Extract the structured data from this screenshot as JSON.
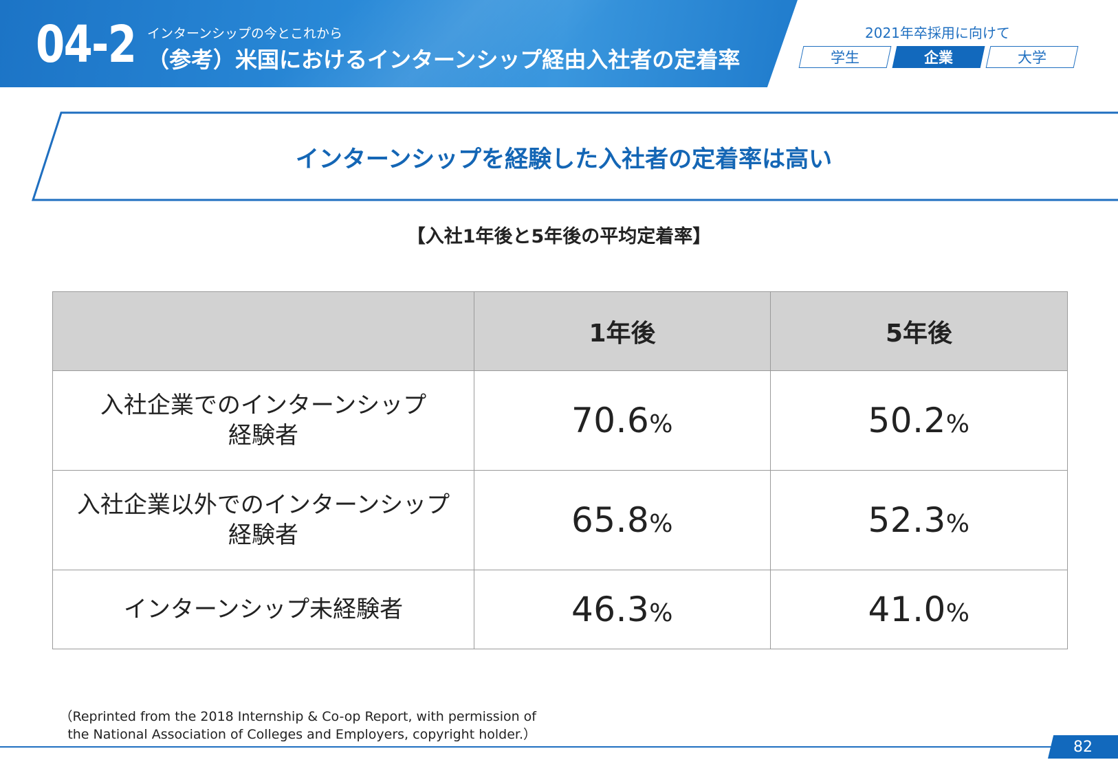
{
  "header": {
    "section_number": "04-2",
    "subtitle": "インターンシップの今とこれから",
    "title": "（参考）米国におけるインターンシップ経由入社者の定着率",
    "recruit_label": "2021年卒採用に向けて",
    "tabs": [
      {
        "label": "学生",
        "active": false
      },
      {
        "label": "企業",
        "active": true
      },
      {
        "label": "大学",
        "active": false
      }
    ]
  },
  "highlight": {
    "text": "インターンシップを経験した入社者の定着率は高い"
  },
  "table": {
    "caption": "【入社1年後と5年後の平均定着率】",
    "columns": [
      "",
      "1年後",
      "5年後"
    ],
    "rows": [
      {
        "label_lines": [
          "入社企業でのインターンシップ",
          "経験者"
        ],
        "year1": "70.6",
        "year5": "50.2"
      },
      {
        "label_lines": [
          "入社企業以外でのインターンシップ",
          "経験者"
        ],
        "year1": "65.8",
        "year5": "52.3"
      },
      {
        "label_lines": [
          "インターンシップ未経験者"
        ],
        "year1": "46.3",
        "year5": "41.0"
      }
    ],
    "unit": "%"
  },
  "footnote": {
    "line1": "（Reprinted from the 2018 Internship & Co-op Report, with permission of",
    "line2": "the National Association of Colleges and Employers, copyright holder.）"
  },
  "page_number": "82",
  "colors": {
    "brand_blue": "#1269bd",
    "header_gradient_mid": "#2a8ad8",
    "table_header_bg": "#d2d2d2",
    "highlight_text": "#1466b5"
  }
}
